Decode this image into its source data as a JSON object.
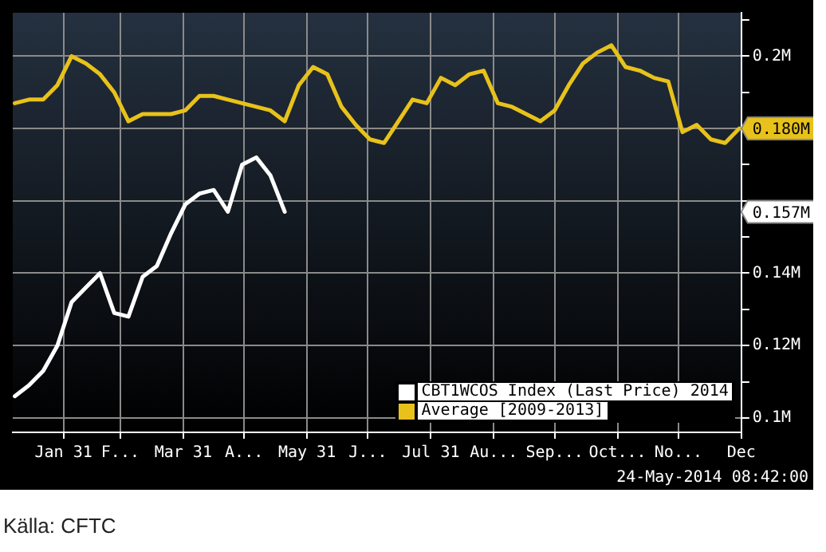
{
  "chart_data": {
    "type": "line",
    "x": [
      "--01-07",
      "--01-14",
      "--01-21",
      "--01-28",
      "--02-04",
      "--02-11",
      "--02-18",
      "--02-25",
      "--03-04",
      "--03-11",
      "--03-18",
      "--03-25",
      "--04-01",
      "--04-08",
      "--04-15",
      "--04-22",
      "--04-29",
      "--05-06",
      "--05-13",
      "--05-20",
      "--05-27",
      "--06-03",
      "--06-10",
      "--06-17",
      "--06-24",
      "--07-01",
      "--07-08",
      "--07-15",
      "--07-22",
      "--07-29",
      "--08-05",
      "--08-12",
      "--08-19",
      "--08-26",
      "--09-02",
      "--09-09",
      "--09-16",
      "--09-23",
      "--09-30",
      "--10-07",
      "--10-14",
      "--10-21",
      "--10-28",
      "--11-04",
      "--11-11",
      "--11-18",
      "--11-25",
      "--12-02",
      "--12-09",
      "--12-16",
      "--12-23",
      "--12-30"
    ],
    "series": [
      {
        "name": "CBT1WCOS Index (Last Price) 2014",
        "color": "#ffffff",
        "values": [
          0.106,
          0.109,
          0.113,
          0.12,
          0.132,
          0.136,
          0.14,
          0.129,
          0.128,
          0.139,
          0.142,
          0.151,
          0.159,
          0.162,
          0.163,
          0.157,
          0.17,
          0.172,
          0.167,
          0.157,
          null,
          null,
          null,
          null,
          null,
          null,
          null,
          null,
          null,
          null,
          null,
          null,
          null,
          null,
          null,
          null,
          null,
          null,
          null,
          null,
          null,
          null,
          null,
          null,
          null,
          null,
          null,
          null,
          null,
          null,
          null,
          null
        ]
      },
      {
        "name": "Average [2009-2013]",
        "color": "#e8c21a",
        "values": [
          0.187,
          0.188,
          0.188,
          0.192,
          0.2,
          0.198,
          0.195,
          0.19,
          0.182,
          0.184,
          0.184,
          0.184,
          0.185,
          0.189,
          0.189,
          0.188,
          0.187,
          0.186,
          0.185,
          0.182,
          0.192,
          0.197,
          0.195,
          0.186,
          0.181,
          0.177,
          0.176,
          0.182,
          0.188,
          0.187,
          0.194,
          0.192,
          0.195,
          0.196,
          0.187,
          0.186,
          0.184,
          0.182,
          0.185,
          0.192,
          0.198,
          0.201,
          0.203,
          0.197,
          0.196,
          0.194,
          0.193,
          0.179,
          0.181,
          0.177,
          0.176,
          0.18
        ]
      }
    ],
    "xlim": [
      "--01-06",
      "--12-31"
    ],
    "xticks": [
      {
        "value": "--01-31",
        "label": "Jan 31"
      },
      {
        "value": "--02-28",
        "label": "F..."
      },
      {
        "value": "--03-31",
        "label": "Mar 31"
      },
      {
        "value": "--04-30",
        "label": "A..."
      },
      {
        "value": "--05-31",
        "label": "May 31"
      },
      {
        "value": "--06-30",
        "label": "J..."
      },
      {
        "value": "--07-31",
        "label": "Jul 31"
      },
      {
        "value": "--08-31",
        "label": "Au..."
      },
      {
        "value": "--09-30",
        "label": "Sep..."
      },
      {
        "value": "--10-31",
        "label": "Oct..."
      },
      {
        "value": "--11-30",
        "label": "No..."
      },
      {
        "value": "--12-31",
        "label": "Dec"
      }
    ],
    "ylim": [
      0.096,
      0.212
    ],
    "yticks": [
      {
        "value": 0.1,
        "label": "0.1M"
      },
      {
        "value": 0.11,
        "label": null
      },
      {
        "value": 0.12,
        "label": "0.12M"
      },
      {
        "value": 0.13,
        "label": null
      },
      {
        "value": 0.14,
        "label": "0.14M"
      },
      {
        "value": 0.15,
        "label": null
      },
      {
        "value": 0.16,
        "label": null
      },
      {
        "value": 0.17,
        "label": null
      },
      {
        "value": 0.18,
        "label": null
      },
      {
        "value": 0.19,
        "label": null
      },
      {
        "value": 0.2,
        "label": "0.2M"
      },
      {
        "value": 0.21,
        "label": null
      }
    ],
    "grid": true,
    "legend": "bottom right",
    "annotations": [
      "0.157M",
      "0.180M",
      "24-May-2014 08:42:00",
      "Källa: CFTC"
    ]
  }
}
